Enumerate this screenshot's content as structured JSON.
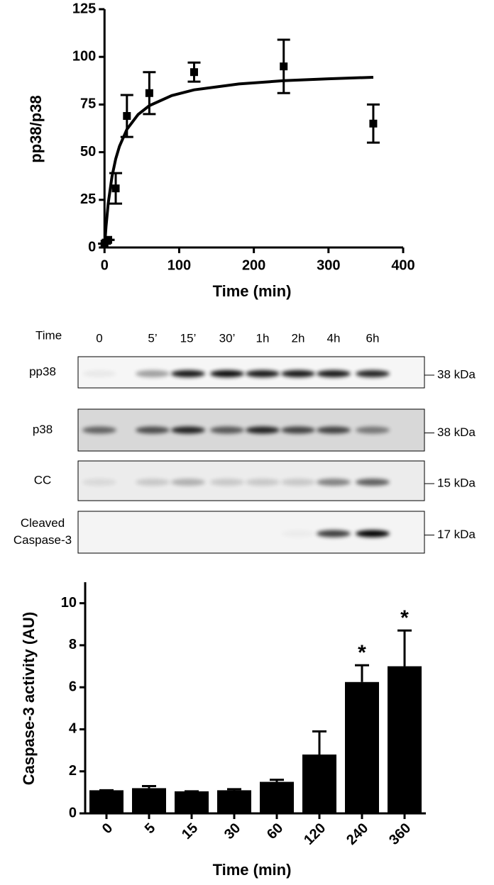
{
  "chart_data": [
    {
      "type": "scatter",
      "x_label": "Time (min)",
      "y_label": "pp38/p38",
      "x": [
        0,
        5,
        15,
        30,
        60,
        120,
        240,
        360
      ],
      "values": [
        2,
        4,
        31,
        69,
        81,
        92,
        95,
        65
      ],
      "errors": [
        0,
        0,
        8,
        11,
        11,
        5,
        14,
        10
      ],
      "color": "#000000",
      "fit": {
        "x": [
          0,
          2,
          5,
          10,
          15,
          20,
          30,
          45,
          60,
          90,
          120,
          180,
          240,
          300,
          360
        ],
        "values": [
          0,
          10.9,
          23.3,
          37.2,
          46.5,
          53.1,
          62,
          69.8,
          74.4,
          79.7,
          82.7,
          85.8,
          87.5,
          88.5,
          89.3
        ]
      },
      "xlim": [
        -5,
        400
      ],
      "xticks": [
        0,
        100,
        200,
        300,
        400
      ],
      "ylim": [
        0,
        125
      ],
      "yticks": [
        0,
        25,
        50,
        75,
        100,
        125
      ]
    },
    {
      "type": "bar",
      "x_label": "Time  (min)",
      "y_label": "Caspase-3 activity (AU)",
      "categories": [
        "0",
        "5",
        "15",
        "30",
        "60",
        "120",
        "240",
        "360"
      ],
      "values": [
        1.1,
        1.2,
        1.05,
        1.1,
        1.5,
        2.8,
        6.25,
        7.0
      ],
      "errors": [
        0,
        0.1,
        0,
        0.05,
        0.1,
        1.1,
        0.8,
        1.7
      ],
      "significance": [
        null,
        null,
        null,
        null,
        null,
        null,
        "*",
        "*"
      ],
      "color": "#000000",
      "ylim": [
        0,
        11
      ],
      "yticks": [
        0,
        2,
        4,
        6,
        8,
        10
      ]
    }
  ],
  "blot": {
    "time_label": "Time",
    "lanes": [
      "0",
      "5’",
      "15’",
      "30’",
      "1h",
      "2h",
      "4h",
      "6h"
    ],
    "rows": [
      {
        "label": [
          "pp38"
        ],
        "marker": "38 kDa"
      },
      {
        "label": [
          "p38"
        ],
        "marker": "38 kDa"
      },
      {
        "label": [
          "CC"
        ],
        "marker": "15 kDa"
      },
      {
        "label": [
          "Cleaved",
          "Caspase-3"
        ],
        "marker": "17 kDa"
      }
    ]
  }
}
